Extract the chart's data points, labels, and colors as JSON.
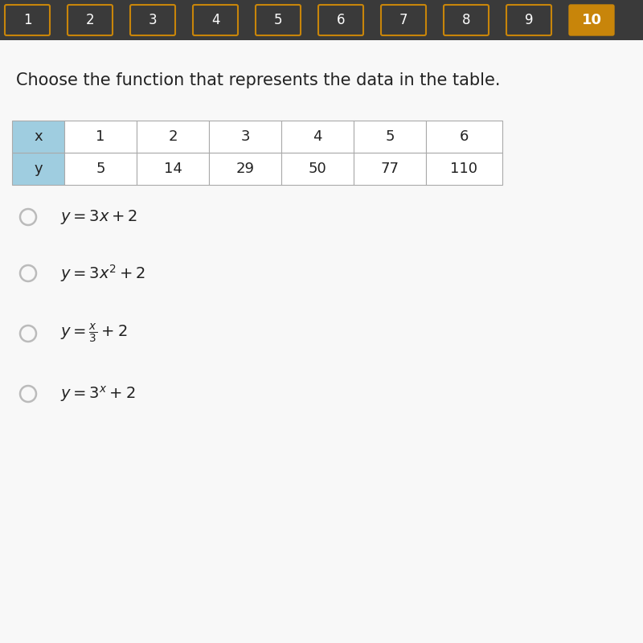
{
  "title": "Choose the function that represents the data in the table.",
  "title_fontsize": 15,
  "table_x": [
    "x",
    "1",
    "2",
    "3",
    "4",
    "5",
    "6"
  ],
  "table_y": [
    "y",
    "5",
    "14",
    "29",
    "50",
    "77",
    "110"
  ],
  "option_math": [
    "$y = 3x + 2$",
    "$y = 3x^2 + 2$",
    "$y = \\frac{x}{3} + 2$",
    "$y = 3^x + 2$"
  ],
  "nav_labels": [
    "1",
    "2",
    "3",
    "4",
    "5",
    "6",
    "7",
    "8",
    "9",
    "10"
  ],
  "nav_active": 9,
  "nav_bar_bg": "#3a3a3a",
  "nav_box_border": "#c8850a",
  "nav_active_color": "#c8850a",
  "nav_active_text": "#ffffff",
  "nav_text_color": "#ffffff",
  "table_first_col_bg": "#9fcde0",
  "table_cell_bg": "#ffffff",
  "table_border_color": "#aaaaaa",
  "main_bg": "#f0f0f0",
  "radio_color": "#bbbbbb",
  "text_color": "#222222"
}
